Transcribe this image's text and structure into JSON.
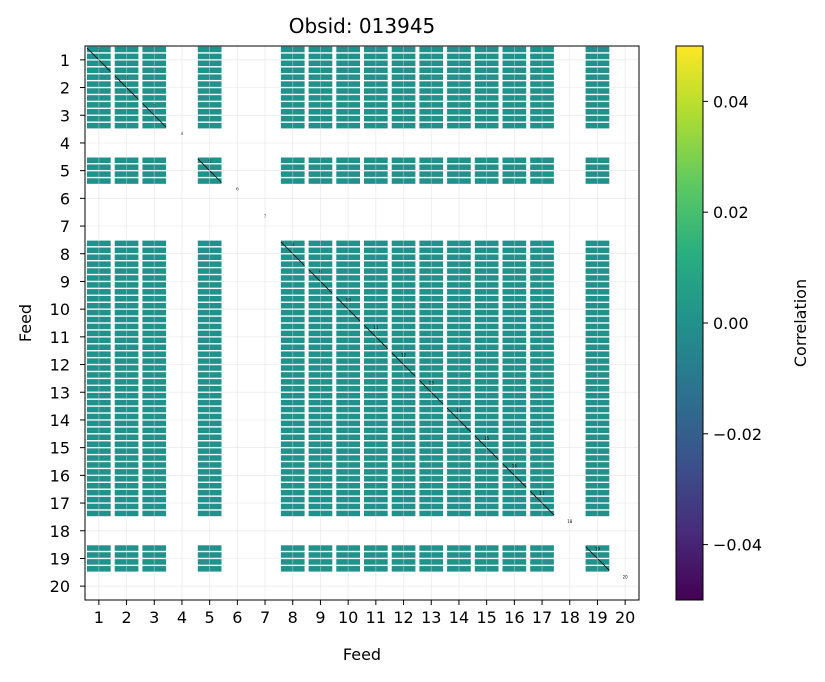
{
  "chart_data": {
    "type": "heatmap",
    "title": "Obsid: 013945",
    "xlabel": "Feed",
    "ylabel": "Feed",
    "x_ticks": [
      "1",
      "2",
      "3",
      "4",
      "5",
      "6",
      "7",
      "8",
      "9",
      "10",
      "11",
      "12",
      "13",
      "14",
      "15",
      "16",
      "17",
      "18",
      "19",
      "20"
    ],
    "y_ticks": [
      "1",
      "2",
      "3",
      "4",
      "5",
      "6",
      "7",
      "8",
      "9",
      "10",
      "11",
      "12",
      "13",
      "14",
      "15",
      "16",
      "17",
      "18",
      "19",
      "20"
    ],
    "feeds": [
      1,
      2,
      3,
      4,
      5,
      6,
      7,
      8,
      9,
      10,
      11,
      12,
      13,
      14,
      15,
      16,
      17,
      18,
      19,
      20
    ],
    "active_feeds": [
      1,
      2,
      3,
      5,
      8,
      9,
      10,
      11,
      12,
      13,
      14,
      15,
      16,
      17,
      19
    ],
    "inactive_feeds": [
      4,
      6,
      7,
      18,
      20
    ],
    "cell_value": 0.0,
    "diagonal_labels": [
      "1",
      "2",
      "3",
      "4",
      "5",
      "6",
      "7",
      "8",
      "9",
      "10",
      "11",
      "12",
      "13",
      "14",
      "15",
      "16",
      "17",
      "18",
      "19",
      "20"
    ],
    "colorbar": {
      "label": "Correlation",
      "colormap": "viridis",
      "vmin": -0.05,
      "vmax": 0.05,
      "ticks": [
        0.04,
        0.02,
        0.0,
        -0.02,
        -0.04
      ],
      "tick_labels": [
        "0.04",
        "0.02",
        "0.00",
        "−0.02",
        "−0.04"
      ]
    },
    "grid": true,
    "cell_color": "#21918c"
  }
}
